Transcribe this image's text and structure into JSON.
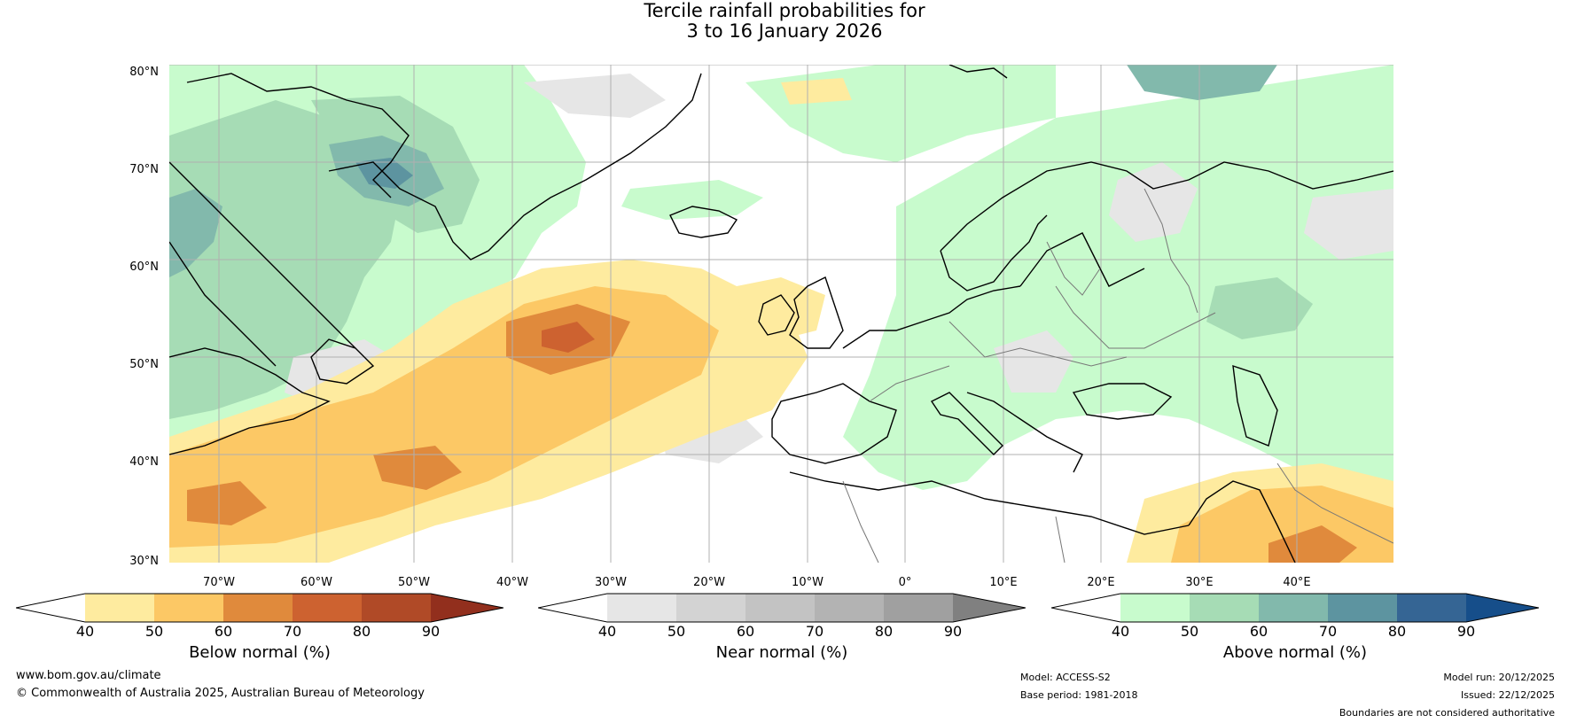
{
  "title": {
    "line1": "Tercile rainfall probabilities for",
    "line2": "3 to 16 January 2026"
  },
  "map": {
    "lat_labels": [
      "80°N",
      "70°N",
      "60°N",
      "50°N",
      "40°N",
      "30°N"
    ],
    "lon_labels": [
      "70°W",
      "60°W",
      "50°W",
      "40°W",
      "30°W",
      "20°W",
      "10°W",
      "0°",
      "10°E",
      "20°E",
      "30°E",
      "40°E"
    ],
    "colors": {
      "ocean_bg": "#ffffff",
      "grid": "#b0b0b0",
      "coast": "#000000",
      "border": "#777777"
    }
  },
  "legends": [
    {
      "title": "Below normal (%)",
      "ticks": [
        "40",
        "50",
        "60",
        "70",
        "80",
        "90"
      ],
      "colors": [
        "#ffffff",
        "#feeb9f",
        "#fcc865",
        "#e08a3c",
        "#cd6230",
        "#b04a27",
        "#922f1d"
      ]
    },
    {
      "title": "Near normal (%)",
      "ticks": [
        "40",
        "50",
        "60",
        "70",
        "80",
        "90"
      ],
      "colors": [
        "#ffffff",
        "#e6e6e6",
        "#d3d3d3",
        "#c3c3c3",
        "#b3b3b3",
        "#a0a0a0",
        "#808080"
      ]
    },
    {
      "title": "Above normal (%)",
      "ticks": [
        "40",
        "50",
        "60",
        "70",
        "80",
        "90"
      ],
      "colors": [
        "#ffffff",
        "#c8fbcd",
        "#a6dcb5",
        "#82b9ac",
        "#5d94a0",
        "#356594",
        "#164e8a"
      ]
    }
  ],
  "footer": {
    "website": "www.bom.gov.au/climate",
    "copyright": "© Commonwealth of Australia 2025, Australian Bureau of Meteorology",
    "model": "Model: ACCESS-S2",
    "base_period": "Base period: 1981-2018",
    "model_run": "Model run: 20/12/2025",
    "issued": "Issued: 22/12/2025",
    "disclaimer": "Boundaries are not considered authoritative"
  }
}
